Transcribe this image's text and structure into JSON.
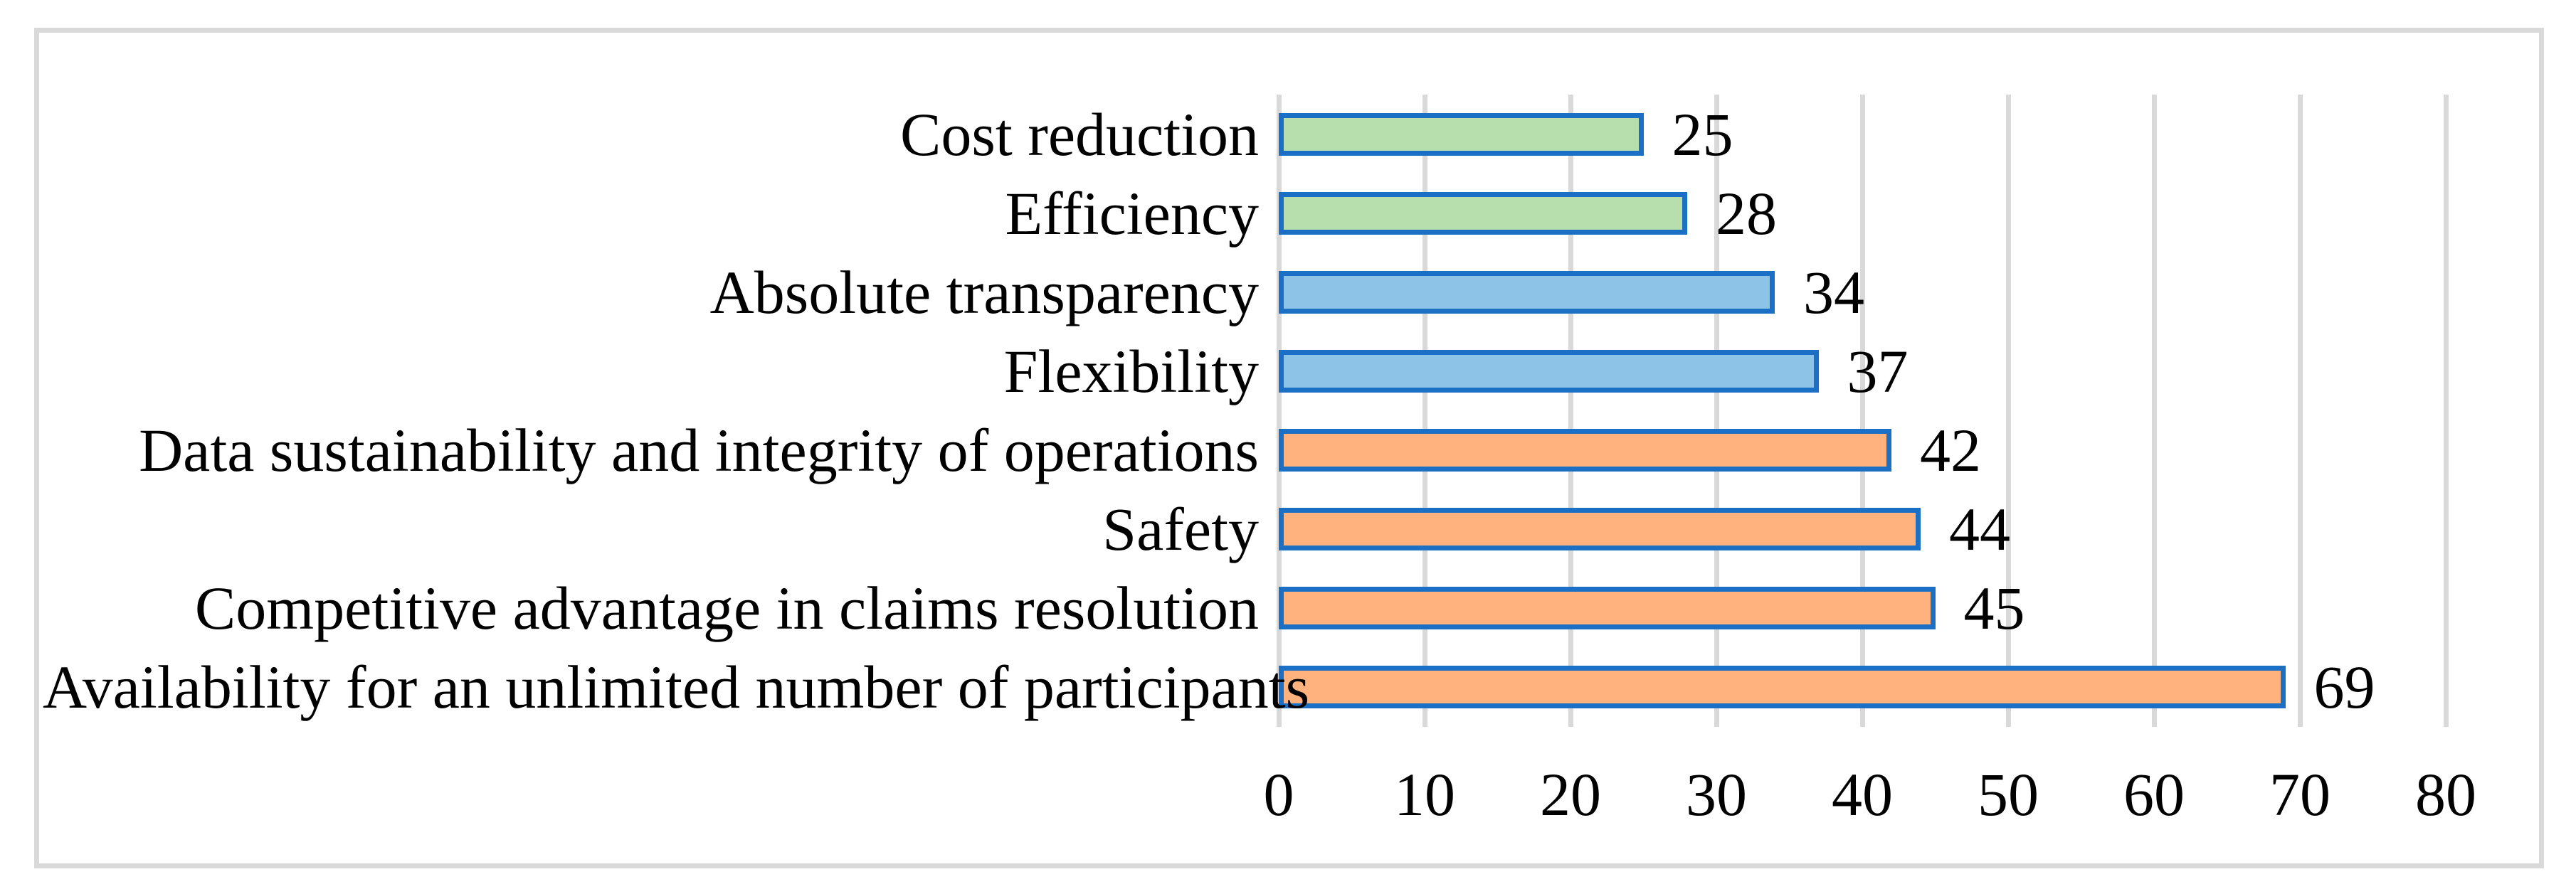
{
  "chart_data": {
    "type": "bar",
    "orientation": "horizontal",
    "title": "",
    "xlabel": "",
    "ylabel": "",
    "categories": [
      "Cost reduction",
      "Efficiency",
      "Absolute transparency",
      "Flexibility",
      "Data sustainability and integrity of operations",
      "Safety",
      "Competitive advantage in claims resolution",
      "Availability for an unlimited number of participants"
    ],
    "values": [
      25,
      28,
      34,
      37,
      42,
      44,
      45,
      69
    ],
    "data_labels": [
      "25",
      "28",
      "34",
      "37",
      "42",
      "44",
      "45",
      "69"
    ],
    "bar_fill_colors": [
      "#B7DFAE",
      "#B7DFAE",
      "#8CC3E6",
      "#8CC3E6",
      "#FFB27E",
      "#FFB27E",
      "#FFB27E",
      "#FFB27E"
    ],
    "bar_border_color": "#1B6FC4",
    "xlim": [
      0,
      80
    ],
    "x_ticks": [
      "0",
      "10",
      "20",
      "30",
      "40",
      "50",
      "60",
      "70",
      "80"
    ],
    "grid": "vertical",
    "gridline_color": "#D9D9D9",
    "frame_border_color": "#D9D9D9",
    "background_color": "#FFFFFF",
    "legend": "none"
  }
}
